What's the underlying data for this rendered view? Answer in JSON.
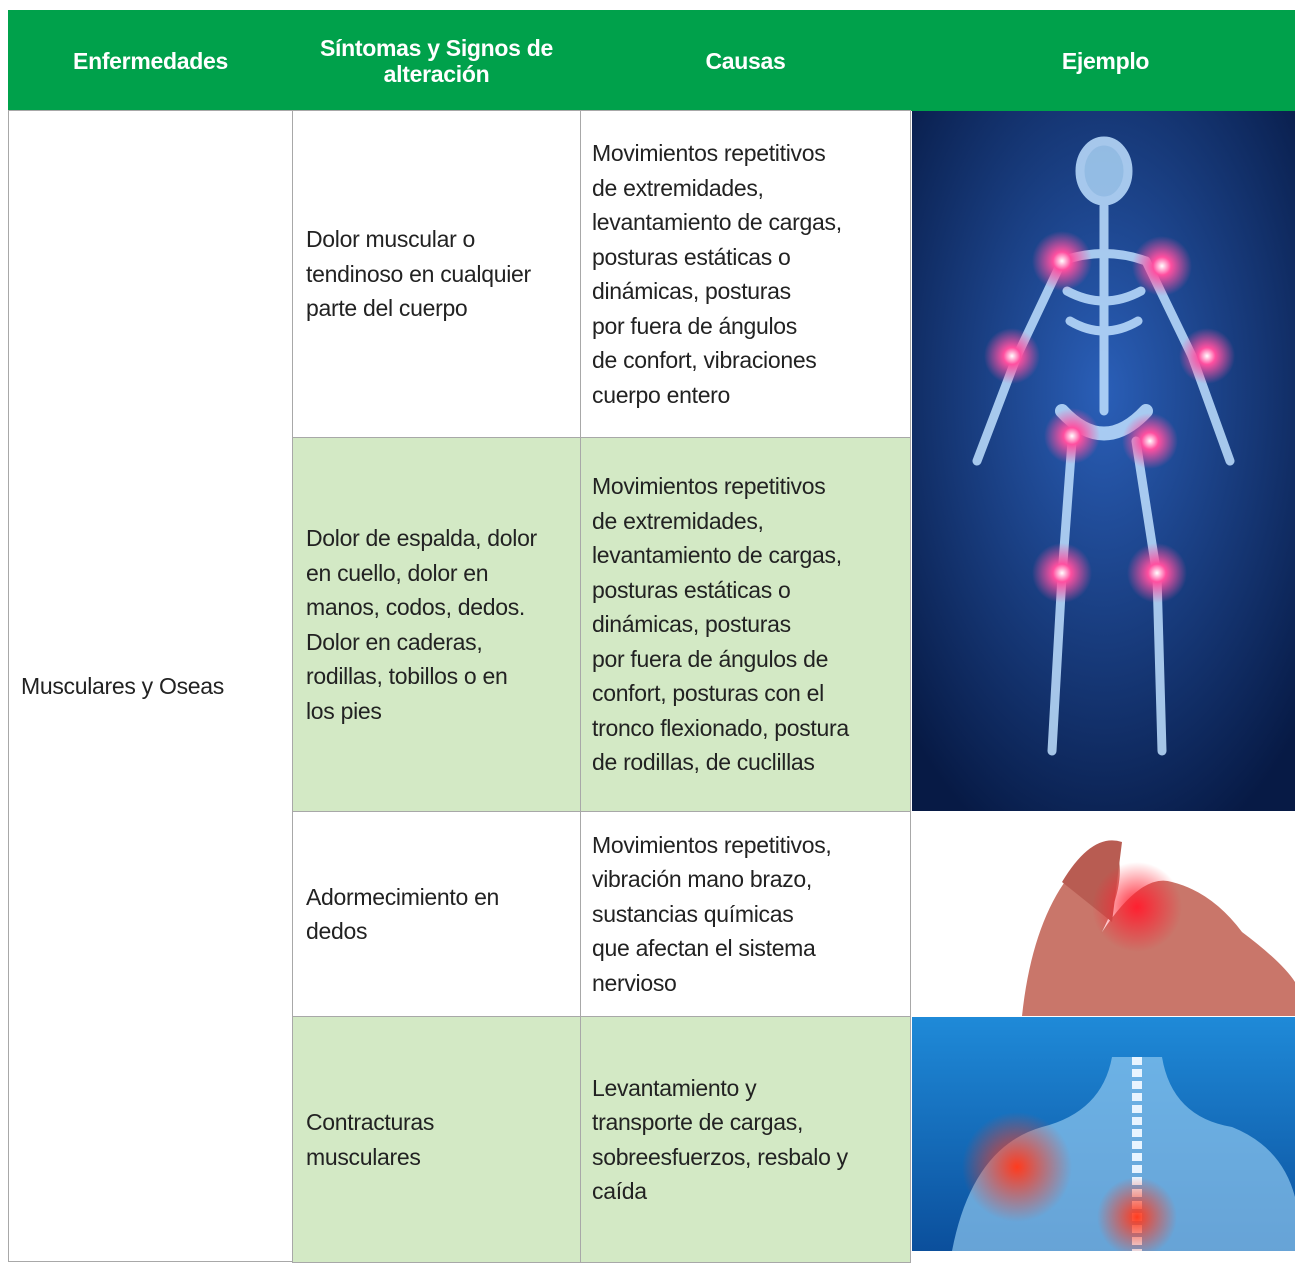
{
  "table": {
    "header": [
      [
        "Enfermedades"
      ],
      [
        "Síntomas y Signos de",
        "alteración"
      ],
      [
        "Causas"
      ],
      [
        "Ejemplo"
      ]
    ],
    "disease": "Musculares y Oseas",
    "rows": [
      {
        "symptom": [
          "Dolor muscular o",
          "tendinoso en cualquier",
          "parte del cuerpo"
        ],
        "causes": [
          "Movimientos repetitivos",
          "de extremidades,",
          "levantamiento de cargas,",
          "posturas estáticas o",
          "dinámicas, posturas",
          "por fuera de ángulos",
          "de confort, vibraciones",
          "cuerpo entero"
        ]
      },
      {
        "symptom": [
          "Dolor de espalda, dolor",
          "en cuello, dolor en",
          "manos, codos, dedos.",
          "Dolor en caderas,",
          "rodillas, tobillos o en",
          "los pies"
        ],
        "causes": [
          "Movimientos repetitivos",
          "de extremidades,",
          "levantamiento de cargas,",
          "posturas estáticas o",
          "dinámicas, posturas",
          "por fuera de ángulos de",
          "confort, posturas con el",
          "tronco flexionado, postura",
          "de rodillas, de cuclillas"
        ]
      },
      {
        "symptom": [
          "Adormecimiento en",
          "dedos"
        ],
        "causes": [
          "Movimientos repetitivos,",
          "vibración mano brazo,",
          "sustancias químicas",
          "que afectan el sistema",
          "nervioso"
        ]
      },
      {
        "symptom": [
          "Contracturas",
          "musculares"
        ],
        "causes": [
          "Levantamiento y",
          "transporte de cargas,",
          "sobreesfuerzos, resbalo y",
          "caída"
        ]
      }
    ]
  }
}
